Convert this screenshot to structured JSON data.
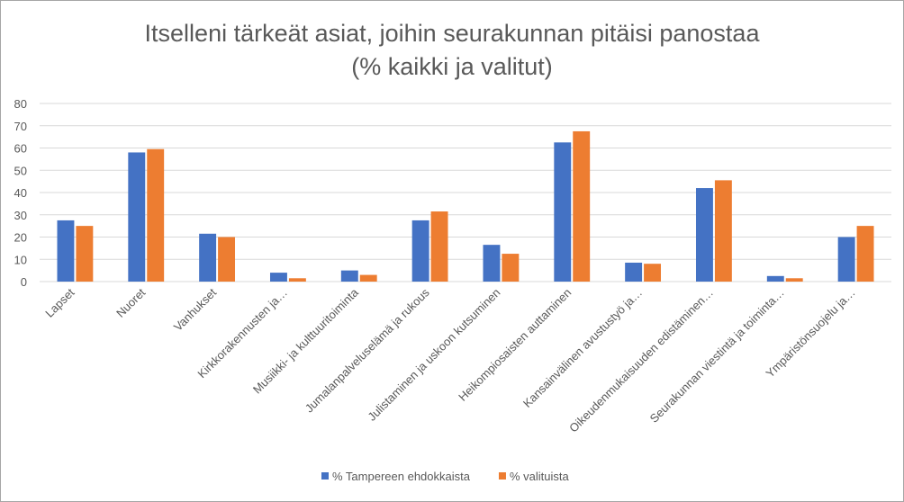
{
  "chart_data": {
    "type": "bar",
    "title": "Itselleni tärkeät asiat, joihin seurakunnan pitäisi panostaa",
    "subtitle": "(% kaikki ja valitut)",
    "categories": [
      "Lapset",
      "Nuoret",
      "Vanhukset",
      "Kirkkorakennusten ja…",
      "Musiikki- ja kulttuuritoiminta",
      "Jumalanpalveluselämä ja rukous",
      "Julistaminen ja uskoon kutsuminen",
      "Heikompiosaisten auttaminen",
      "Kansainvälinen avustustyö ja…",
      "Oikeudenmukaisuuden edistäminen…",
      "Seurakunnan viestintä ja toiminta…",
      "Ympäristönsuojelu ja…"
    ],
    "series": [
      {
        "name": "% Tampereen ehdokkaista",
        "color": "#4472c4",
        "values": [
          27.5,
          58,
          21.5,
          4,
          5,
          27.5,
          16.5,
          62.5,
          8.5,
          42,
          2.5,
          20
        ]
      },
      {
        "name": "% valituista",
        "color": "#ed7d31",
        "values": [
          25,
          59.5,
          20,
          1.5,
          3,
          31.5,
          12.5,
          67.5,
          8,
          45.5,
          1.5,
          25
        ]
      }
    ],
    "ylim": [
      0,
      80
    ],
    "yticks": [
      0,
      10,
      20,
      30,
      40,
      50,
      60,
      70,
      80
    ],
    "grid": true,
    "legend": "bottom"
  }
}
